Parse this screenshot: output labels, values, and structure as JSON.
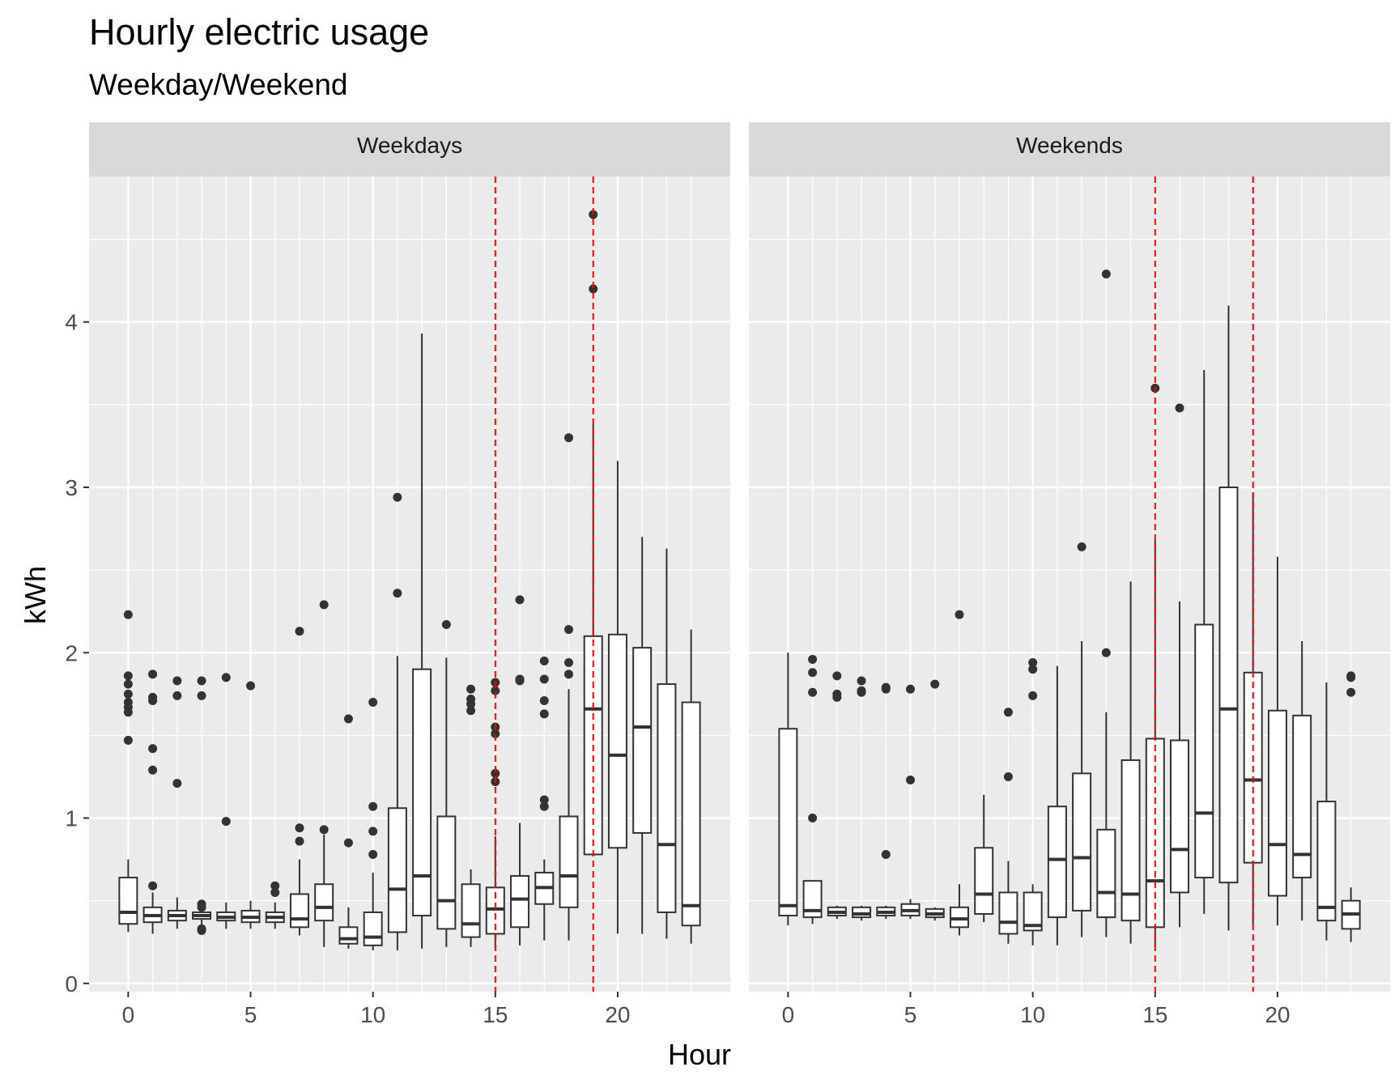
{
  "chart_data": {
    "type": "boxplot",
    "title": "Hourly electric usage",
    "subtitle": "Weekday/Weekend",
    "xlabel": "Hour",
    "ylabel": "kWh",
    "x_ticks": [
      0,
      5,
      10,
      15,
      20
    ],
    "y_ticks": [
      0,
      1,
      2,
      3,
      4
    ],
    "xlim": [
      -1.6,
      24.6
    ],
    "ylim": [
      -0.05,
      4.88
    ],
    "reference_lines": {
      "x": [
        15,
        19
      ],
      "color": "#ff0000",
      "style": "dashed"
    },
    "colors": {
      "panel": "#ebebeb",
      "grid": "#ffffff",
      "strip": "#d9d9d9",
      "box_fill": "#ffffff",
      "box_line": "#333333"
    },
    "facets": [
      {
        "label": "Weekdays",
        "boxes": [
          {
            "hour": 0,
            "lw": 0.31,
            "q1": 0.36,
            "med": 0.43,
            "q3": 0.64,
            "uw": 0.75,
            "out": [
              2.23,
              1.86,
              1.81,
              1.75,
              1.7,
              1.67,
              1.64,
              1.47
            ]
          },
          {
            "hour": 1,
            "lw": 0.3,
            "q1": 0.37,
            "med": 0.41,
            "q3": 0.46,
            "uw": 0.55,
            "out": [
              1.87,
              1.73,
              1.71,
              1.42,
              1.29,
              0.59
            ]
          },
          {
            "hour": 2,
            "lw": 0.33,
            "q1": 0.38,
            "med": 0.41,
            "q3": 0.44,
            "uw": 0.52,
            "out": [
              1.83,
              1.74,
              1.21
            ]
          },
          {
            "hour": 3,
            "lw": 0.35,
            "q1": 0.39,
            "med": 0.41,
            "q3": 0.43,
            "uw": 0.46,
            "out": [
              1.83,
              1.74,
              0.48,
              0.46,
              0.33,
              0.32
            ]
          },
          {
            "hour": 4,
            "lw": 0.33,
            "q1": 0.38,
            "med": 0.4,
            "q3": 0.43,
            "uw": 0.49,
            "out": [
              1.85,
              0.98
            ]
          },
          {
            "hour": 5,
            "lw": 0.33,
            "q1": 0.37,
            "med": 0.4,
            "q3": 0.44,
            "uw": 0.5,
            "out": [
              1.8
            ]
          },
          {
            "hour": 6,
            "lw": 0.33,
            "q1": 0.37,
            "med": 0.4,
            "q3": 0.43,
            "uw": 0.49,
            "out": [
              0.59,
              0.55
            ]
          },
          {
            "hour": 7,
            "lw": 0.29,
            "q1": 0.34,
            "med": 0.39,
            "q3": 0.54,
            "uw": 0.75,
            "out": [
              2.13,
              0.94,
              0.86
            ]
          },
          {
            "hour": 8,
            "lw": 0.22,
            "q1": 0.38,
            "med": 0.46,
            "q3": 0.6,
            "uw": 0.9,
            "out": [
              2.29,
              0.93
            ]
          },
          {
            "hour": 9,
            "lw": 0.21,
            "q1": 0.24,
            "med": 0.27,
            "q3": 0.34,
            "uw": 0.46,
            "out": [
              1.6,
              0.85
            ]
          },
          {
            "hour": 10,
            "lw": 0.2,
            "q1": 0.23,
            "med": 0.28,
            "q3": 0.43,
            "uw": 0.67,
            "out": [
              1.7,
              1.07,
              0.92,
              0.78
            ]
          },
          {
            "hour": 11,
            "lw": 0.2,
            "q1": 0.31,
            "med": 0.57,
            "q3": 1.06,
            "uw": 1.98,
            "out": [
              2.94,
              2.36
            ]
          },
          {
            "hour": 12,
            "lw": 0.21,
            "q1": 0.41,
            "med": 0.65,
            "q3": 1.9,
            "uw": 3.93,
            "out": []
          },
          {
            "hour": 13,
            "lw": 0.22,
            "q1": 0.33,
            "med": 0.5,
            "q3": 1.01,
            "uw": 1.97,
            "out": [
              2.17
            ]
          },
          {
            "hour": 14,
            "lw": 0.22,
            "q1": 0.28,
            "med": 0.36,
            "q3": 0.6,
            "uw": 0.69,
            "out": [
              1.78,
              1.72,
              1.69,
              1.65
            ]
          },
          {
            "hour": 15,
            "lw": 0.21,
            "q1": 0.3,
            "med": 0.45,
            "q3": 0.58,
            "uw": 0.89,
            "out": [
              1.82,
              1.77,
              1.55,
              1.51,
              1.27,
              1.22
            ]
          },
          {
            "hour": 16,
            "lw": 0.23,
            "q1": 0.34,
            "med": 0.51,
            "q3": 0.65,
            "uw": 0.97,
            "out": [
              2.32,
              1.84,
              1.83
            ]
          },
          {
            "hour": 17,
            "lw": 0.26,
            "q1": 0.48,
            "med": 0.58,
            "q3": 0.67,
            "uw": 0.75,
            "out": [
              1.95,
              1.84,
              1.71,
              1.63,
              1.11,
              1.07
            ]
          },
          {
            "hour": 18,
            "lw": 0.26,
            "q1": 0.46,
            "med": 0.65,
            "q3": 1.01,
            "uw": 1.78,
            "out": [
              3.3,
              2.14,
              1.94,
              1.87
            ]
          },
          {
            "hour": 19,
            "lw": 0.77,
            "q1": 0.78,
            "med": 1.66,
            "q3": 2.1,
            "uw": 3.38,
            "out": [
              4.65,
              4.2
            ]
          },
          {
            "hour": 20,
            "lw": 0.3,
            "q1": 0.82,
            "med": 1.38,
            "q3": 2.11,
            "uw": 3.16,
            "out": []
          },
          {
            "hour": 21,
            "lw": 0.3,
            "q1": 0.91,
            "med": 1.55,
            "q3": 2.03,
            "uw": 2.7,
            "out": []
          },
          {
            "hour": 22,
            "lw": 0.27,
            "q1": 0.43,
            "med": 0.84,
            "q3": 1.81,
            "uw": 2.63,
            "out": []
          },
          {
            "hour": 23,
            "lw": 0.24,
            "q1": 0.35,
            "med": 0.47,
            "q3": 1.7,
            "uw": 2.14,
            "out": []
          }
        ]
      },
      {
        "label": "Weekends",
        "boxes": [
          {
            "hour": 0,
            "lw": 0.35,
            "q1": 0.41,
            "med": 0.47,
            "q3": 1.54,
            "uw": 2.0,
            "out": []
          },
          {
            "hour": 1,
            "lw": 0.36,
            "q1": 0.4,
            "med": 0.44,
            "q3": 0.62,
            "uw": 0.62,
            "out": [
              1.96,
              1.88,
              1.76,
              1.0
            ]
          },
          {
            "hour": 2,
            "lw": 0.39,
            "q1": 0.41,
            "med": 0.43,
            "q3": 0.46,
            "uw": 0.47,
            "out": [
              1.86,
              1.75,
              1.73
            ]
          },
          {
            "hour": 3,
            "lw": 0.38,
            "q1": 0.4,
            "med": 0.42,
            "q3": 0.46,
            "uw": 0.47,
            "out": [
              1.83,
              1.77,
              1.76
            ]
          },
          {
            "hour": 4,
            "lw": 0.39,
            "q1": 0.41,
            "med": 0.43,
            "q3": 0.46,
            "uw": 0.47,
            "out": [
              1.79,
              1.78,
              0.78
            ]
          },
          {
            "hour": 5,
            "lw": 0.39,
            "q1": 0.41,
            "med": 0.44,
            "q3": 0.48,
            "uw": 0.51,
            "out": [
              1.78,
              1.23
            ]
          },
          {
            "hour": 6,
            "lw": 0.38,
            "q1": 0.4,
            "med": 0.42,
            "q3": 0.45,
            "uw": 0.46,
            "out": [
              1.81
            ]
          },
          {
            "hour": 7,
            "lw": 0.29,
            "q1": 0.34,
            "med": 0.39,
            "q3": 0.46,
            "uw": 0.6,
            "out": [
              2.23
            ]
          },
          {
            "hour": 8,
            "lw": 0.37,
            "q1": 0.42,
            "med": 0.54,
            "q3": 0.82,
            "uw": 1.14,
            "out": []
          },
          {
            "hour": 9,
            "lw": 0.24,
            "q1": 0.3,
            "med": 0.37,
            "q3": 0.55,
            "uw": 0.74,
            "out": [
              1.64,
              1.25
            ]
          },
          {
            "hour": 10,
            "lw": 0.23,
            "q1": 0.32,
            "med": 0.35,
            "q3": 0.55,
            "uw": 0.6,
            "out": [
              1.94,
              1.9,
              1.74
            ]
          },
          {
            "hour": 11,
            "lw": 0.23,
            "q1": 0.4,
            "med": 0.75,
            "q3": 1.07,
            "uw": 1.92,
            "out": []
          },
          {
            "hour": 12,
            "lw": 0.28,
            "q1": 0.44,
            "med": 0.76,
            "q3": 1.27,
            "uw": 2.07,
            "out": [
              2.64
            ]
          },
          {
            "hour": 13,
            "lw": 0.28,
            "q1": 0.4,
            "med": 0.55,
            "q3": 0.93,
            "uw": 1.64,
            "out": [
              4.29,
              2.0
            ]
          },
          {
            "hour": 14,
            "lw": 0.24,
            "q1": 0.38,
            "med": 0.54,
            "q3": 1.35,
            "uw": 2.43,
            "out": []
          },
          {
            "hour": 15,
            "lw": 0.22,
            "q1": 0.34,
            "med": 0.62,
            "q3": 1.48,
            "uw": 2.68,
            "out": [
              3.6
            ]
          },
          {
            "hour": 16,
            "lw": 0.34,
            "q1": 0.55,
            "med": 0.81,
            "q3": 1.47,
            "uw": 2.31,
            "out": [
              3.48
            ]
          },
          {
            "hour": 17,
            "lw": 0.42,
            "q1": 0.64,
            "med": 1.03,
            "q3": 2.17,
            "uw": 3.71,
            "out": []
          },
          {
            "hour": 18,
            "lw": 0.32,
            "q1": 0.61,
            "med": 1.66,
            "q3": 3.0,
            "uw": 4.1,
            "out": []
          },
          {
            "hour": 19,
            "lw": 0.36,
            "q1": 0.73,
            "med": 1.23,
            "q3": 1.88,
            "uw": 2.97,
            "out": []
          },
          {
            "hour": 20,
            "lw": 0.35,
            "q1": 0.53,
            "med": 0.84,
            "q3": 1.65,
            "uw": 2.58,
            "out": []
          },
          {
            "hour": 21,
            "lw": 0.38,
            "q1": 0.64,
            "med": 0.78,
            "q3": 1.62,
            "uw": 2.07,
            "out": []
          },
          {
            "hour": 22,
            "lw": 0.26,
            "q1": 0.38,
            "med": 0.46,
            "q3": 1.1,
            "uw": 1.82,
            "out": []
          },
          {
            "hour": 23,
            "lw": 0.25,
            "q1": 0.33,
            "med": 0.42,
            "q3": 0.5,
            "uw": 0.58,
            "out": [
              1.86,
              1.85,
              1.76
            ]
          }
        ]
      }
    ]
  }
}
